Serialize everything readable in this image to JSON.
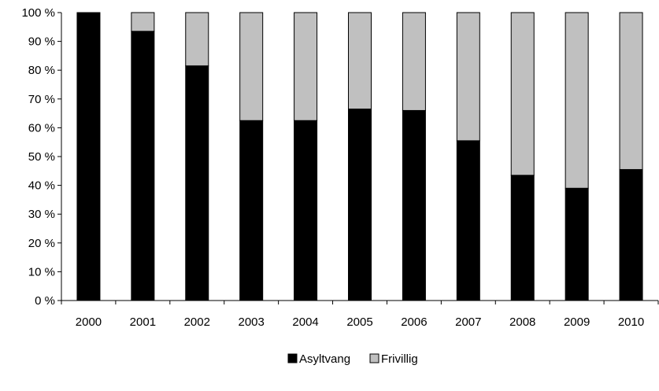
{
  "chart_data": {
    "type": "bar",
    "stacked": true,
    "percent": true,
    "categories": [
      "2000",
      "2001",
      "2002",
      "2003",
      "2004",
      "2005",
      "2006",
      "2007",
      "2008",
      "2009",
      "2010"
    ],
    "series": [
      {
        "name": "Asyltvang",
        "color": "#000000",
        "values": [
          100,
          93.5,
          81.5,
          62.5,
          62.5,
          66.5,
          66,
          55.5,
          43.5,
          39,
          45.5
        ]
      },
      {
        "name": "Frivillig",
        "color": "#c0c0c0",
        "values": [
          0,
          6.5,
          18.5,
          37.5,
          37.5,
          33.5,
          34,
          44.5,
          56.5,
          61,
          54.5
        ]
      }
    ],
    "ylim": [
      0,
      100
    ],
    "yticks": [
      "0 %",
      "10 %",
      "20 %",
      "30 %",
      "40 %",
      "50 %",
      "60 %",
      "70 %",
      "80 %",
      "90 %",
      "100 %"
    ],
    "title": "",
    "xlabel": "",
    "ylabel": "",
    "grid": false,
    "legend_position": "bottom"
  }
}
